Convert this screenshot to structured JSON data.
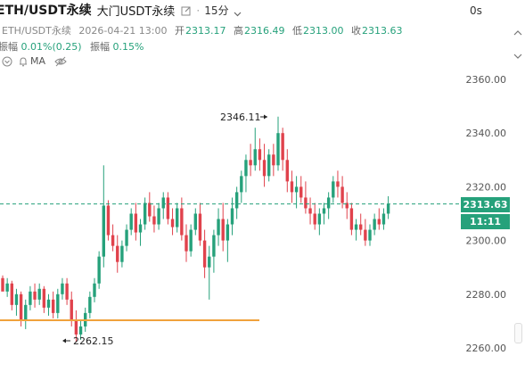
{
  "header": {
    "symbol": "ETH/USDT永续",
    "venue": "大门USDT永续",
    "separator": "·",
    "interval": "15分",
    "countdown": "0s"
  },
  "ohlc": {
    "pair": "ETH/USDT永续",
    "datetime": "2026-04-21 13:00",
    "open_label": "开",
    "open": "2313.17",
    "high_label": "高",
    "high": "2316.49",
    "low_label": "低",
    "low": "2313.00",
    "close_label": "收",
    "close": "2313.63"
  },
  "change": {
    "label1": "振幅",
    "value1": "0.01%(0.25)",
    "label2": "振幅",
    "value2": "0.15%"
  },
  "indicators": {
    "ma_label": "MA"
  },
  "price_axis": {
    "ticks": [
      "2360.00",
      "2340.00",
      "2320.00",
      "2300.00",
      "2280.00",
      "2260.00"
    ],
    "current_price": "2313.63",
    "candle_timer": "11:11"
  },
  "annotations": {
    "high_marker": "2346.11",
    "low_marker": "2262.15"
  },
  "colors": {
    "up": "#26a17b",
    "down": "#e0424c",
    "support_line": "#f0a23c",
    "current_price_line": "#26a17b"
  }
}
